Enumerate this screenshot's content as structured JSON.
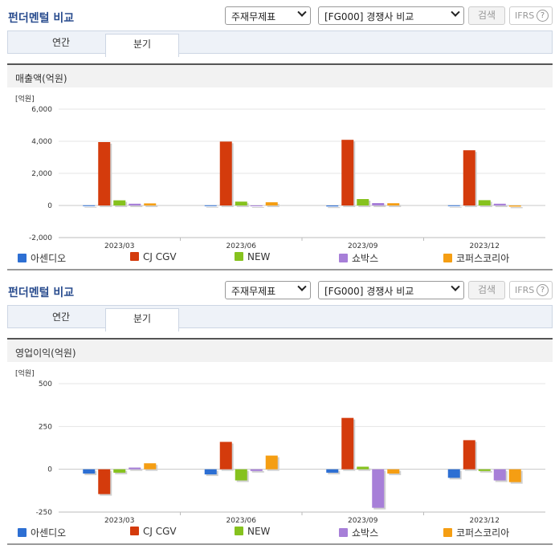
{
  "header": {
    "title": "펀더멘털 비교",
    "select1": "주재무제표",
    "select2": "[FG000] 경쟁사 비교",
    "search_label": "검색",
    "ifrs_label": "IFRS",
    "help_label": "?"
  },
  "tabs": [
    {
      "label": "연간",
      "active": false
    },
    {
      "label": "분기",
      "active": true
    }
  ],
  "legend": [
    {
      "name": "아센디오",
      "color": "#2d6fd3"
    },
    {
      "name": "CJ CGV",
      "color": "#d43b0c"
    },
    {
      "name": "NEW",
      "color": "#86c21e"
    },
    {
      "name": "쇼박스",
      "color": "#a77fd8"
    },
    {
      "name": "코퍼스코리아",
      "color": "#f59e13"
    }
  ],
  "chart_data": [
    {
      "type": "bar",
      "title": "매출액(억원)",
      "unit_label": "[억원]",
      "categories": [
        "2023/03",
        "2023/06",
        "2023/09",
        "2023/12"
      ],
      "ylim": [
        -2000,
        6000
      ],
      "yticks": [
        6000,
        4000,
        2000,
        0,
        -2000
      ],
      "ytick_labels": [
        "6,000",
        "4,000",
        "2,000",
        "0",
        "-2,000"
      ],
      "series": [
        {
          "name": "아센디오",
          "values": [
            10,
            10,
            -60,
            10
          ]
        },
        {
          "name": "CJ CGV",
          "values": [
            3950,
            3980,
            4090,
            3440
          ]
        },
        {
          "name": "NEW",
          "values": [
            320,
            240,
            400,
            330
          ]
        },
        {
          "name": "쇼박스",
          "values": [
            110,
            -50,
            150,
            110
          ]
        },
        {
          "name": "코퍼스코리아",
          "values": [
            130,
            200,
            140,
            -70
          ]
        }
      ],
      "grid": true,
      "legend_position": "bottom"
    },
    {
      "type": "bar",
      "title": "영업이익(억원)",
      "unit_label": "[억원]",
      "categories": [
        "2023/03",
        "2023/06",
        "2023/09",
        "2023/12"
      ],
      "ylim": [
        -250,
        500
      ],
      "yticks": [
        500,
        250,
        0,
        -250
      ],
      "ytick_labels": [
        "500",
        "250",
        "0",
        "-250"
      ],
      "series": [
        {
          "name": "아센디오",
          "values": [
            -25,
            -30,
            -20,
            -50
          ]
        },
        {
          "name": "CJ CGV",
          "values": [
            -145,
            160,
            300,
            170
          ]
        },
        {
          "name": "NEW",
          "values": [
            -20,
            -65,
            15,
            -10
          ]
        },
        {
          "name": "쇼박스",
          "values": [
            10,
            -10,
            -225,
            -65
          ]
        },
        {
          "name": "코퍼스코리아",
          "values": [
            35,
            80,
            -25,
            -75
          ]
        }
      ],
      "grid": true,
      "legend_position": "bottom"
    }
  ]
}
